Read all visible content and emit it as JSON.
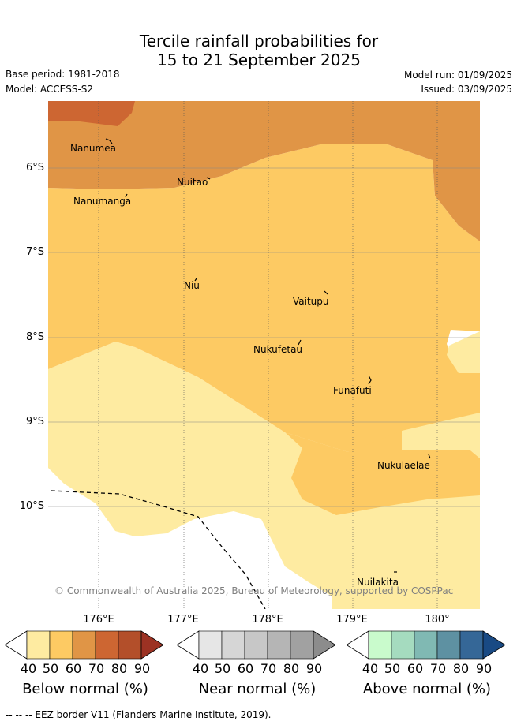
{
  "title": {
    "line1": "Tercile rainfall probabilities for",
    "line2": "15 to 21 September 2025"
  },
  "meta": {
    "base_period": "Base period: 1981-2018",
    "model": "Model: ACCESS-S2",
    "model_run": "Model run: 01/09/2025",
    "issued": "Issued: 03/09/2025"
  },
  "axes": {
    "lat_labels": [
      "6°S",
      "7°S",
      "8°S",
      "9°S",
      "10°S"
    ],
    "lon_labels": [
      "176°E",
      "177°E",
      "178°E",
      "179°E",
      "180°"
    ]
  },
  "islands": [
    {
      "name": "Nanumea"
    },
    {
      "name": "Nuitao"
    },
    {
      "name": "Nanumanga"
    },
    {
      "name": "Niu"
    },
    {
      "name": "Vaitupu"
    },
    {
      "name": "Nukufetau"
    },
    {
      "name": "Funafuti"
    },
    {
      "name": "Nukulaelae"
    },
    {
      "name": "Nuilakita"
    }
  ],
  "copyright": "© Commonwealth of Australia 2025, Bureau of Meteorology, supported by COSPPac",
  "colorbars": [
    {
      "title": "Below normal (%)",
      "ticks": [
        "40",
        "50",
        "60",
        "70",
        "80",
        "90"
      ],
      "colors": [
        "#ffffff",
        "#feeba1",
        "#fdca63",
        "#e09546",
        "#cd6632",
        "#b34f2a",
        "#9c3223"
      ]
    },
    {
      "title": "Near normal (%)",
      "ticks": [
        "40",
        "50",
        "60",
        "70",
        "80",
        "90"
      ],
      "colors": [
        "#ffffff",
        "#e6e6e6",
        "#d6d6d6",
        "#c7c7c7",
        "#b5b5b5",
        "#a1a1a1",
        "#8c8c8c"
      ]
    },
    {
      "title": "Above normal (%)",
      "ticks": [
        "40",
        "50",
        "60",
        "70",
        "80",
        "90"
      ],
      "colors": [
        "#ffffff",
        "#c9fbcc",
        "#a5dbbf",
        "#80b9b3",
        "#5e91a2",
        "#356797",
        "#194a84"
      ]
    }
  ],
  "footer": "-- -- -- EEZ border V11 (Flanders Marine Institute, 2019)."
}
